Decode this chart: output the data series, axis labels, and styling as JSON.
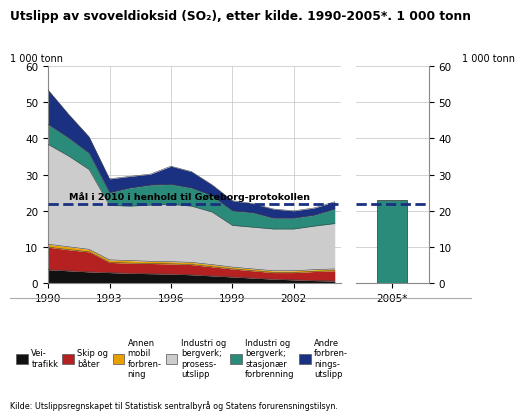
{
  "title": "Utslipp av svoveldioksid (SO₂), etter kilde. 1990-2005*. 1 000 tonn",
  "ylabel_left": "1 000 tonn",
  "ylabel_right": "1 000 tonn",
  "source": "Kilde: Utslippsregnskapet til Statistisk sentralbyrå og Statens forurensningstilsyn.",
  "years": [
    1990,
    1991,
    1992,
    1993,
    1994,
    1995,
    1996,
    1997,
    1998,
    1999,
    2000,
    2001,
    2002,
    2003,
    2004
  ],
  "veitrafikk": [
    3.8,
    3.5,
    3.2,
    3.0,
    2.8,
    2.7,
    2.6,
    2.4,
    2.1,
    1.8,
    1.5,
    1.2,
    1.0,
    0.8,
    0.7
  ],
  "skip_og_bater": [
    6.2,
    5.8,
    5.5,
    2.8,
    2.8,
    2.8,
    2.8,
    2.8,
    2.5,
    2.2,
    2.0,
    1.8,
    2.0,
    2.5,
    2.8
  ],
  "annen_mobil": [
    0.8,
    0.8,
    0.7,
    0.7,
    0.7,
    0.6,
    0.6,
    0.6,
    0.6,
    0.5,
    0.5,
    0.5,
    0.5,
    0.5,
    0.5
  ],
  "industri_prosess": [
    27.5,
    25.0,
    22.0,
    15.0,
    15.0,
    15.5,
    15.8,
    15.5,
    14.5,
    11.5,
    11.5,
    11.5,
    11.5,
    12.0,
    12.5
  ],
  "industri_stasjonar": [
    5.5,
    5.0,
    4.5,
    3.5,
    5.0,
    5.5,
    5.5,
    5.0,
    4.5,
    4.0,
    4.0,
    3.0,
    3.0,
    3.0,
    4.0
  ],
  "andre_forbrenning": [
    9.5,
    6.5,
    4.5,
    3.8,
    3.2,
    3.0,
    5.0,
    4.5,
    3.0,
    2.8,
    2.5,
    2.5,
    2.0,
    2.0,
    2.0
  ],
  "bar_2005_value": 23.0,
  "goal_line": 22.0,
  "goal_label": "Mål i 2010 i henhold til Gøteborg-protokollen",
  "colors": {
    "veitrafikk": "#111111",
    "skip_og_bater": "#b52020",
    "annen_mobil": "#e8a000",
    "industri_prosess": "#cccccc",
    "industri_stasjonar": "#2b8b7a",
    "andre_forbrenning": "#1a3080"
  },
  "legend_labels": [
    "Vei-\ntrafikk",
    "Skip og\nbåter",
    "Annen\nmobil\nforbren-\nning",
    "Industri og\nbergverk;\nprosess-\nutslipp",
    "Industri og\nbergverk;\nstasjonær\nforbrenning",
    "Andre\nforbren-\nnings-\nutslipp"
  ],
  "ylim": [
    0,
    60
  ],
  "yticks": [
    0,
    10,
    20,
    30,
    40,
    50,
    60
  ]
}
